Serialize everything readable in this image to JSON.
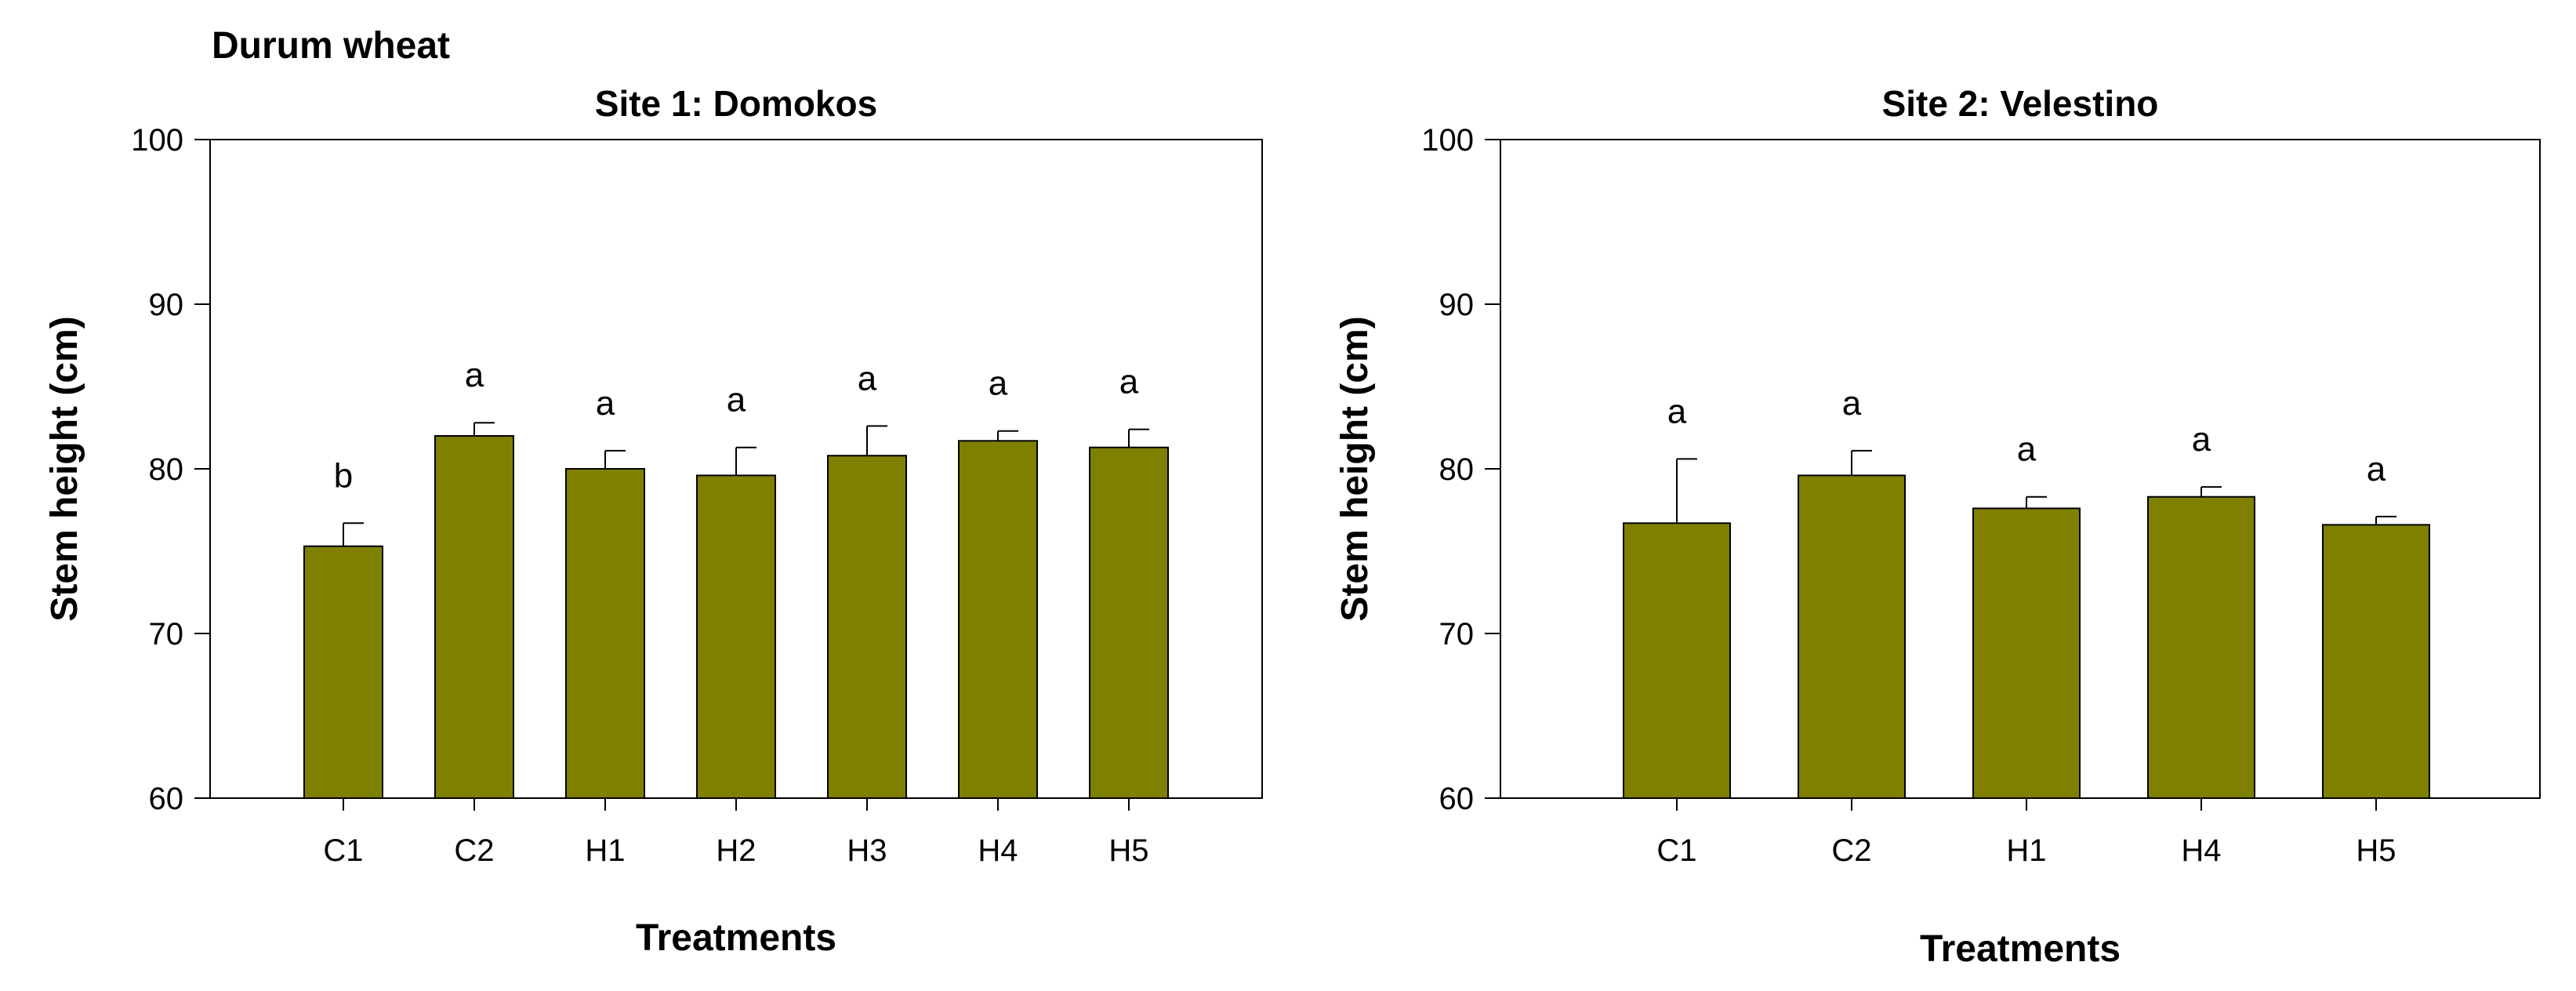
{
  "figure_title": "Durum wheat",
  "colors": {
    "bar_fill": "#808000",
    "bar_stroke": "#000000",
    "axis": "#000000",
    "background": "#ffffff"
  },
  "chart_data": [
    {
      "type": "bar",
      "title": "Site 1: Domokos",
      "xlabel": "Treatments",
      "ylabel": "Stem height (cm)",
      "ylim": [
        60,
        100
      ],
      "yticks": [
        60,
        70,
        80,
        90,
        100
      ],
      "grid": false,
      "categories": [
        "C1",
        "C2",
        "H1",
        "H2",
        "H3",
        "H4",
        "H5"
      ],
      "values": [
        75.3,
        82.0,
        80.0,
        79.6,
        80.8,
        81.7,
        81.3
      ],
      "errors": [
        1.4,
        0.8,
        1.1,
        1.7,
        1.8,
        0.6,
        1.1
      ],
      "significance_labels": [
        "b",
        "a",
        "a",
        "a",
        "a",
        "a",
        "a"
      ]
    },
    {
      "type": "bar",
      "title": "Site 2: Velestino",
      "xlabel": "Treatments",
      "ylabel": "Stem height (cm)",
      "ylim": [
        60,
        100
      ],
      "yticks": [
        60,
        70,
        80,
        90,
        100
      ],
      "grid": false,
      "categories": [
        "C1",
        "C2",
        "H1",
        "H4",
        "H5"
      ],
      "values": [
        76.7,
        79.6,
        77.6,
        78.3,
        76.6
      ],
      "errors": [
        3.9,
        1.5,
        0.7,
        0.6,
        0.5
      ],
      "significance_labels": [
        "a",
        "a",
        "a",
        "a",
        "a"
      ]
    }
  ]
}
